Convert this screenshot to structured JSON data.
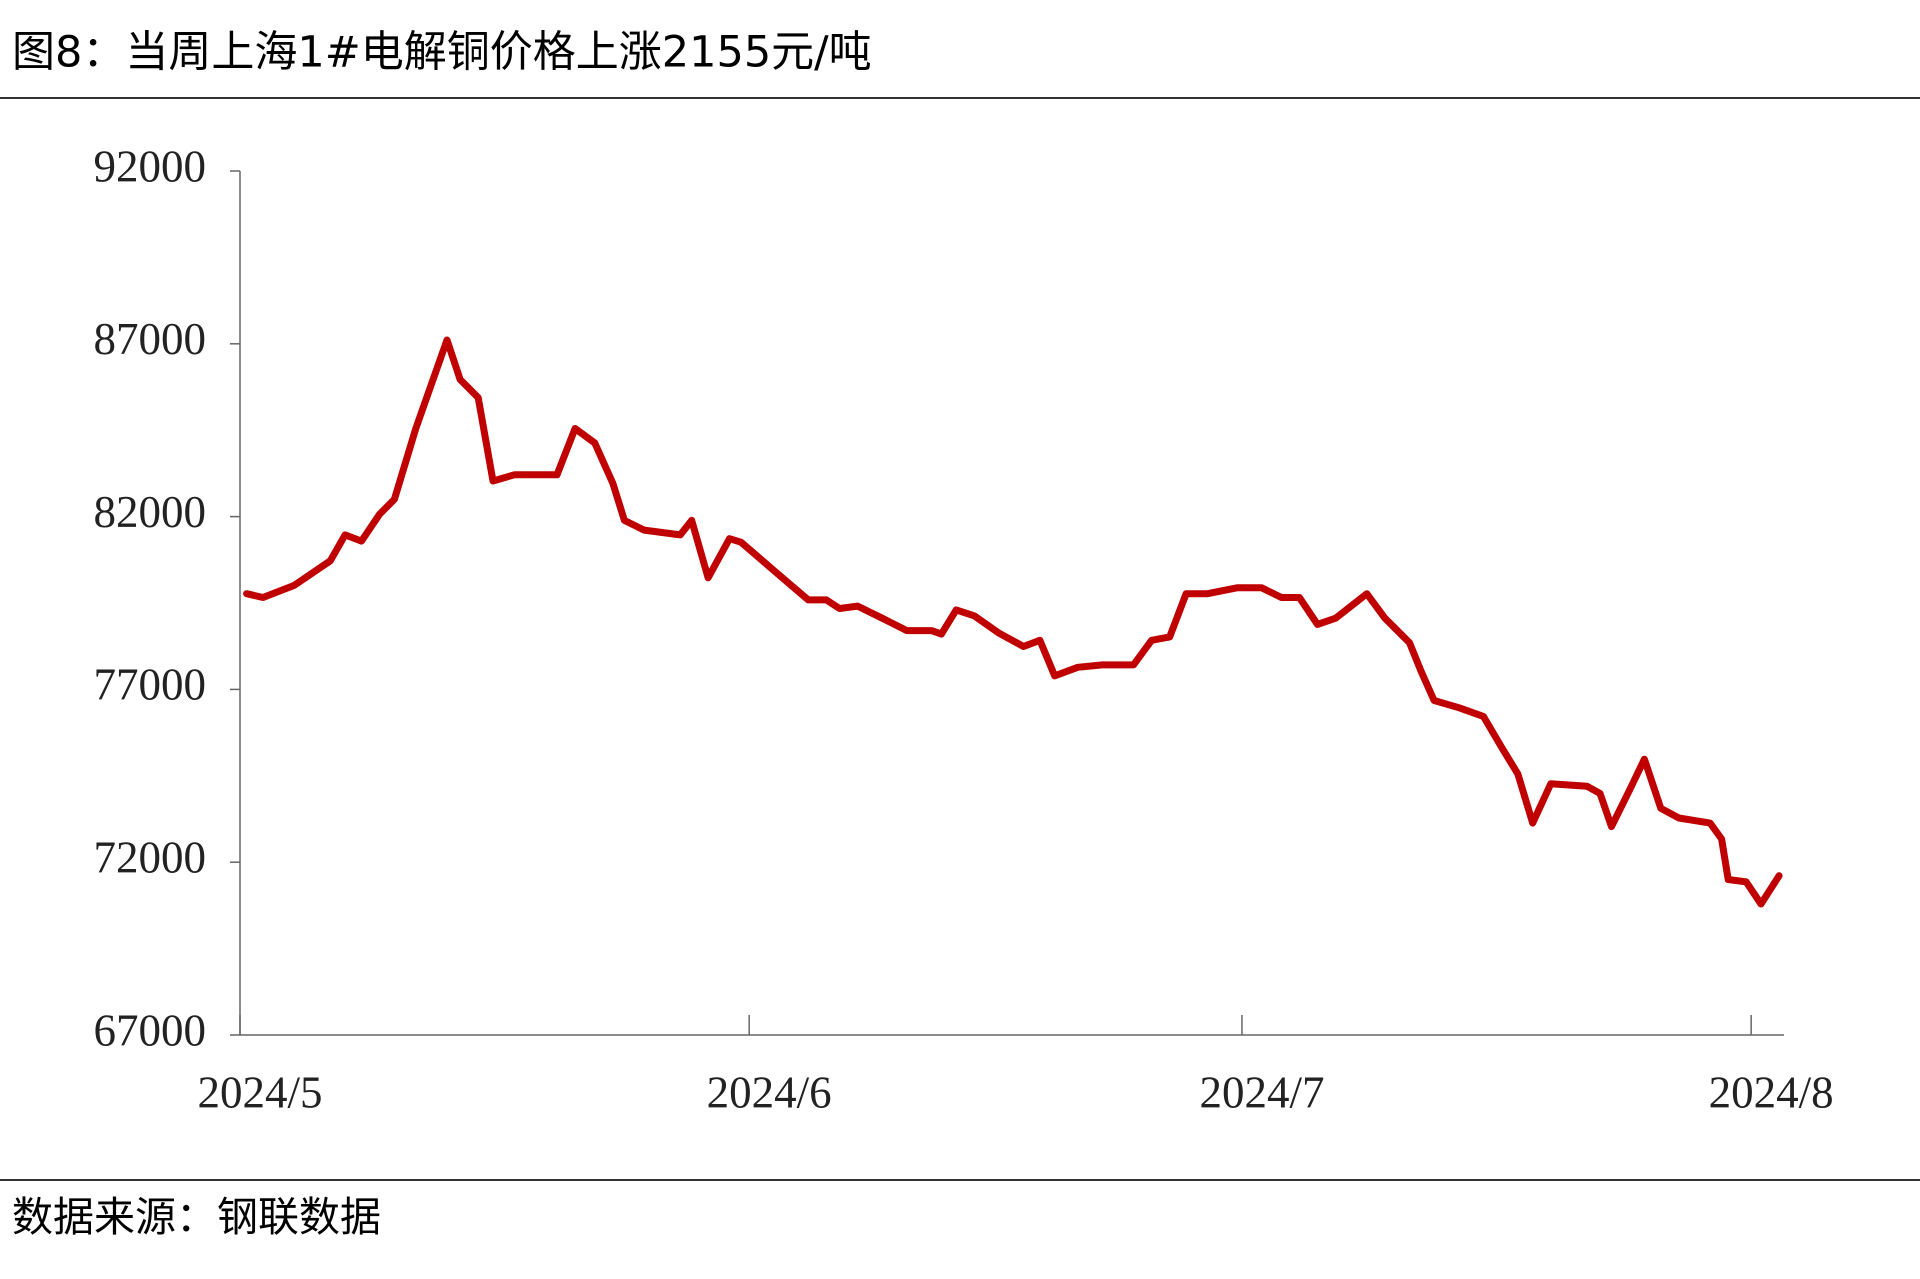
{
  "chart_data": {
    "type": "line",
    "title": "图8：当周上海1#电解铜价格上涨2155元/吨",
    "source": "数据来源：钢联数据",
    "xlim": [
      0,
      94
    ],
    "xticks": [
      {
        "value": 0,
        "label": "2024/5"
      },
      {
        "value": 31,
        "label": "2024/6"
      },
      {
        "value": 61,
        "label": "2024/7"
      },
      {
        "value": 92,
        "label": "2024/8"
      }
    ],
    "ylim": [
      67000,
      92000
    ],
    "yticks": [
      67000,
      72000,
      77000,
      82000,
      87000,
      92000
    ],
    "series": [
      {
        "name": "上海1#电解铜",
        "color": "#c00000",
        "x": [
          0.4,
          1.4,
          3.3,
          5.5,
          6.4,
          7.4,
          8.5,
          9.4,
          10.7,
          12.6,
          13.4,
          14.5,
          15.4,
          16.7,
          19.3,
          20.4,
          21.6,
          22.7,
          23.4,
          24.6,
          26.8,
          27.5,
          28.5,
          29.8,
          30.5,
          32.4,
          34.6,
          35.7,
          36.5,
          37.6,
          39.1,
          40.6,
          42.1,
          42.7,
          43.6,
          44.7,
          46.2,
          47.7,
          48.7,
          49.6,
          51.0,
          52.5,
          54.4,
          55.5,
          56.6,
          57.6,
          58.9,
          60.7,
          62.2,
          63.4,
          64.5,
          65.6,
          66.7,
          68.6,
          69.7,
          71.2,
          71.9,
          72.7,
          74.2,
          75.7,
          76.8,
          77.8,
          78.7,
          79.8,
          82.0,
          82.8,
          83.5,
          84.6,
          85.5,
          86.5,
          87.6,
          89.5,
          90.2,
          90.6,
          91.7,
          92.6,
          93.7
        ],
        "values": [
          79770,
          79660,
          80010,
          80720,
          81470,
          81290,
          82070,
          82500,
          84550,
          87110,
          85970,
          85440,
          83030,
          83210,
          83210,
          84550,
          84130,
          82960,
          81890,
          81610,
          81470,
          81890,
          80230,
          81360,
          81260,
          80480,
          79590,
          79590,
          79340,
          79410,
          79060,
          78700,
          78700,
          78600,
          79300,
          79130,
          78630,
          78240,
          78420,
          77390,
          77640,
          77710,
          77710,
          78420,
          78520,
          79770,
          79770,
          79940,
          79940,
          79660,
          79660,
          78880,
          79060,
          79770,
          79060,
          78350,
          77530,
          76680,
          76470,
          76220,
          75330,
          74550,
          73130,
          74270,
          74200,
          73990,
          73030,
          74090,
          74980,
          73560,
          73280,
          73130,
          72670,
          71500,
          71430,
          70790,
          71610
        ]
      }
    ]
  }
}
